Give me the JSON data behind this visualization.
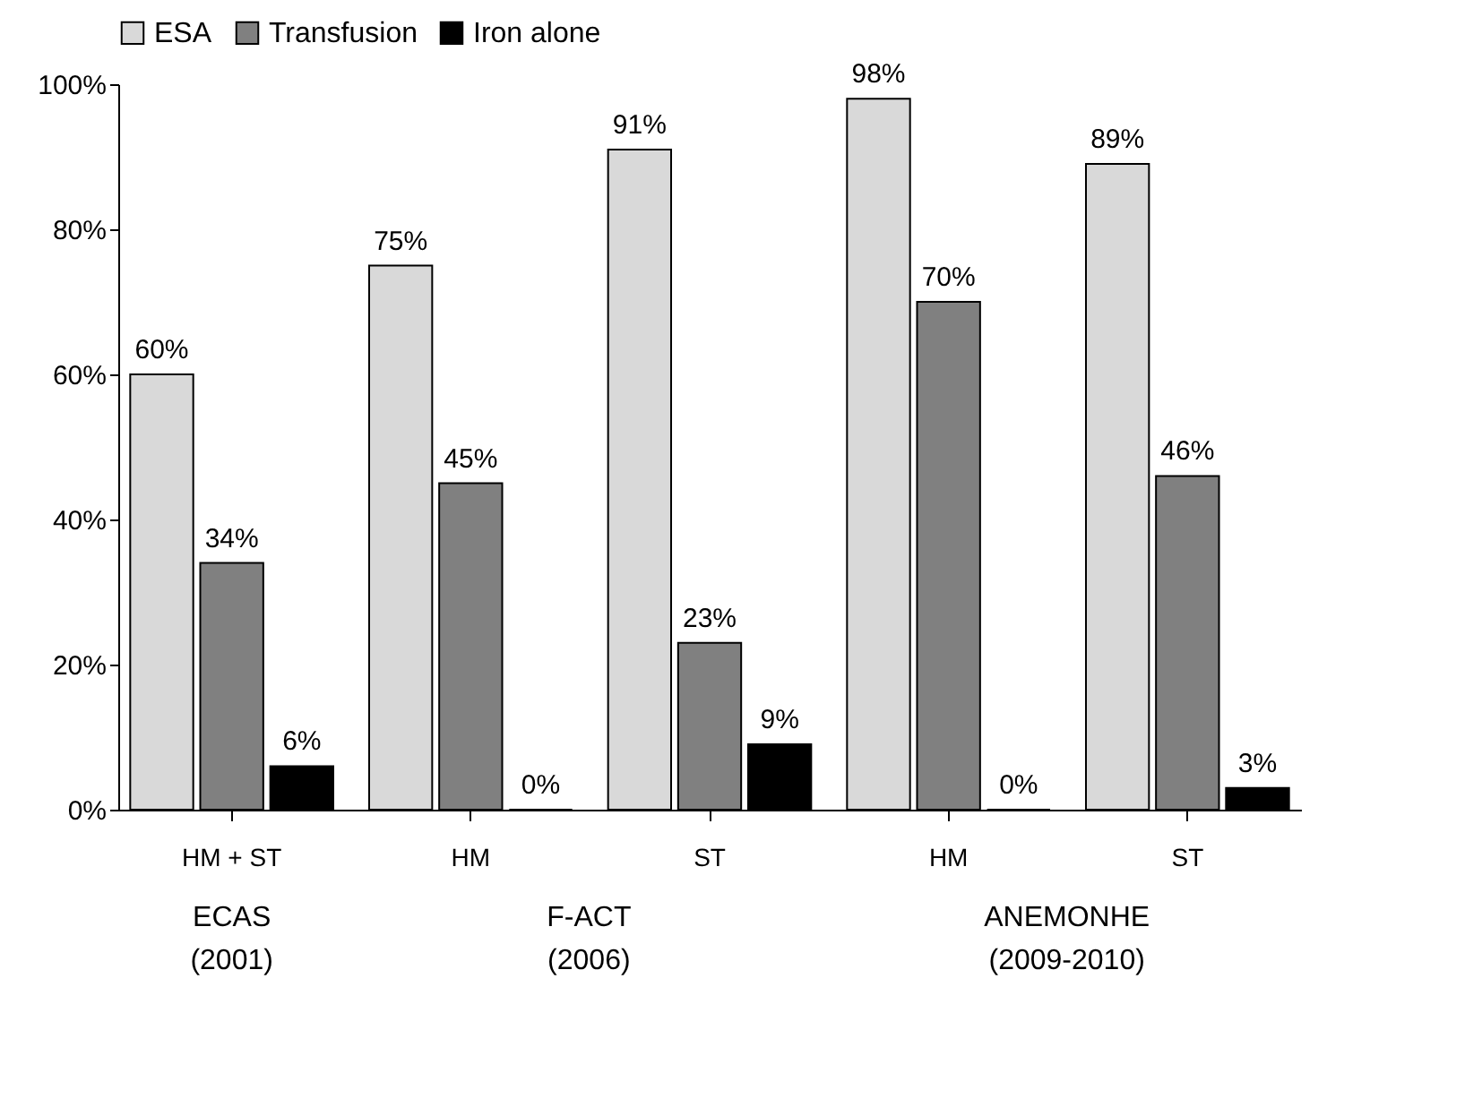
{
  "chart_data": {
    "type": "bar",
    "categories": [
      "HM + ST",
      "HM",
      "ST",
      "HM",
      "ST"
    ],
    "series": [
      {
        "name": "ESA",
        "color": "#d9d9d9",
        "values": [
          60,
          75,
          91,
          98,
          89
        ],
        "value_labels": [
          "60%",
          "75%",
          "91%",
          "98%",
          "89%"
        ]
      },
      {
        "name": "Transfusion",
        "color": "#808080",
        "values": [
          34,
          45,
          23,
          70,
          46
        ],
        "value_labels": [
          "34%",
          "45%",
          "23%",
          "70%",
          "46%"
        ]
      },
      {
        "name": "Iron alone",
        "color": "#000000",
        "values": [
          6,
          0,
          9,
          0,
          3
        ],
        "value_labels": [
          "6%",
          "0%",
          "9%",
          "0%",
          "3%"
        ]
      }
    ],
    "ylim": [
      0,
      100
    ],
    "yticks": [
      {
        "value": 0,
        "label": "0%"
      },
      {
        "value": 20,
        "label": "20%"
      },
      {
        "value": 40,
        "label": "40%"
      },
      {
        "value": 60,
        "label": "60%"
      },
      {
        "value": 80,
        "label": "80%"
      },
      {
        "value": 100,
        "label": "100%"
      }
    ],
    "legend": "top left",
    "grid": false,
    "annotations": [
      "ECAS\n(2001)",
      "F-ACT\n(2006)",
      "ANEMONHE\n(2009-2010)"
    ]
  }
}
